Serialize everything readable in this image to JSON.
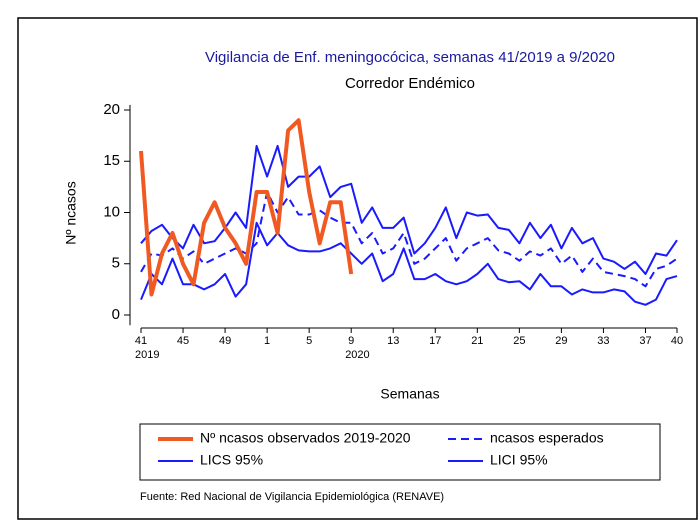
{
  "chart_data": {
    "type": "line",
    "title": "Vigilancia de Enf. meningocócica, semanas 41/2019 a 9/2020",
    "subtitle": "Corredor Endémico",
    "x_label": "Semanas",
    "y_label": "Nº ncasos",
    "source": "Fuente: Red Nacional de Vigilancia Epidemiológica (RENAVE)",
    "categories": [
      "41",
      null,
      null,
      null,
      "45",
      null,
      null,
      null,
      "49",
      null,
      null,
      null,
      "1",
      null,
      null,
      null,
      "5",
      null,
      null,
      null,
      "9",
      null,
      null,
      null,
      "13",
      null,
      null,
      null,
      "17",
      null,
      null,
      null,
      "21",
      null,
      null,
      null,
      "25",
      null,
      null,
      null,
      "29",
      null,
      null,
      null,
      "33",
      null,
      null,
      null,
      "37",
      null,
      null,
      "40"
    ],
    "year_labels": [
      {
        "at": "41",
        "label": "2019"
      },
      {
        "at": "9",
        "label": "2020"
      }
    ],
    "ylim": [
      -1,
      20.5
    ],
    "yticks": [
      0,
      5,
      10,
      15,
      20
    ],
    "series": [
      {
        "name": "Nº ncasos observados 2019-2020",
        "color": "#f05a22",
        "width": 4,
        "dashed": false,
        "values": [
          16,
          2,
          6,
          8,
          5,
          3,
          9,
          11,
          8.5,
          7,
          5,
          12,
          12,
          8,
          18,
          19,
          12,
          7,
          11,
          11,
          4,
          null,
          null,
          null,
          null,
          null,
          null,
          null,
          null,
          null,
          null,
          null,
          null,
          null,
          null,
          null,
          null,
          null,
          null,
          null,
          null,
          null,
          null,
          null,
          null,
          null,
          null,
          null,
          null,
          null,
          null,
          null
        ]
      },
      {
        "name": "ncasos esperados",
        "color": "#1a1aff",
        "width": 2,
        "dashed": true,
        "values": [
          4.2,
          6,
          5.8,
          6.5,
          5.5,
          6.2,
          5,
          5.5,
          6,
          6.5,
          6,
          7,
          12,
          10,
          11.5,
          9.8,
          9.8,
          10.2,
          9.5,
          9,
          9,
          7,
          8,
          6,
          6.5,
          8,
          5,
          5.5,
          6.5,
          7.5,
          5.3,
          6.5,
          7,
          7.5,
          6.3,
          6,
          5.3,
          6.2,
          5.8,
          6.5,
          5,
          5.8,
          4.2,
          5.5,
          4.2,
          4,
          3.8,
          3.5,
          2.8,
          4.5,
          4.8,
          5.5
        ]
      },
      {
        "name": "LICS 95%",
        "color": "#1a1aff",
        "width": 2,
        "dashed": false,
        "values": [
          7,
          8.2,
          8.8,
          7.5,
          6.5,
          8.8,
          7,
          7.2,
          8.5,
          10,
          8.5,
          16.5,
          13.5,
          16.5,
          12.5,
          13.5,
          13.5,
          14.5,
          11.5,
          12.5,
          12.8,
          9,
          10.5,
          8.5,
          8.5,
          9.5,
          6,
          7,
          8.5,
          10.5,
          7.5,
          10,
          9.7,
          9.8,
          8.5,
          8.3,
          7,
          9,
          7.5,
          8.8,
          6.5,
          8.5,
          7,
          7.5,
          5.5,
          5.2,
          4.5,
          5.2,
          4,
          6,
          5.8,
          7.3
        ]
      },
      {
        "name": "LICI 95%",
        "color": "#1a1aff",
        "width": 2,
        "dashed": false,
        "values": [
          1.5,
          4,
          3,
          5.5,
          3,
          3,
          2.5,
          3,
          4,
          1.8,
          3,
          9,
          6.8,
          8,
          6.8,
          6.3,
          6.2,
          6.2,
          6.5,
          7,
          6,
          5,
          6,
          3.3,
          4,
          6.5,
          3.5,
          3.5,
          4,
          3.3,
          3,
          3.3,
          4,
          5,
          3.5,
          3.2,
          3.3,
          2.5,
          4,
          2.8,
          2.8,
          2,
          2.5,
          2.2,
          2.2,
          2.5,
          2.3,
          1.3,
          1,
          1.5,
          3.5,
          3.8
        ]
      }
    ]
  }
}
